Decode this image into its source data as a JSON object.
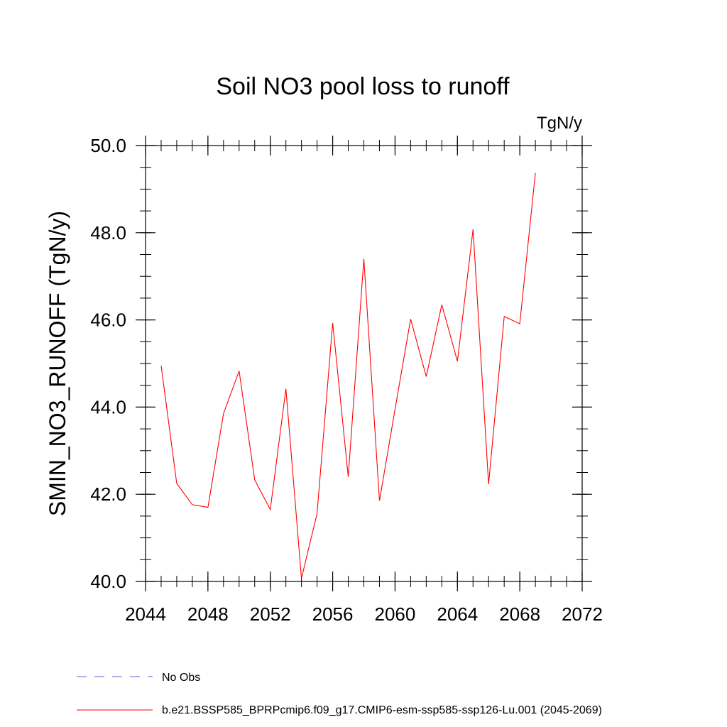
{
  "chart_data": {
    "type": "line",
    "title": "Soil NO3 pool loss to runoff",
    "units_label": "TgN/y",
    "xlabel": "",
    "ylabel": "SMIN_NO3_RUNOFF  (TgN/y)",
    "xlim": [
      2044,
      2072
    ],
    "ylim": [
      40.0,
      50.0
    ],
    "xticks": [
      2044,
      2048,
      2052,
      2056,
      2060,
      2064,
      2068,
      2072
    ],
    "xtick_labels": [
      "2044",
      "2048",
      "2052",
      "2056",
      "2060",
      "2064",
      "2068",
      "2072"
    ],
    "yticks": [
      40.0,
      42.0,
      44.0,
      46.0,
      48.0,
      50.0
    ],
    "ytick_labels": [
      "40.0",
      "42.0",
      "44.0",
      "46.0",
      "48.0",
      "50.0"
    ],
    "grid": false,
    "legend_placement": "bottom-left, below plot",
    "series": [
      {
        "name": "b.e21.BSSP585_BPRPcmip6.f09_g17.CMIP6-esm-ssp585-ssp126-Lu.001 (2045-2069)",
        "color": "#ff0000",
        "style": "solid",
        "x": [
          2045,
          2046,
          2047,
          2048,
          2049,
          2050,
          2051,
          2052,
          2053,
          2054,
          2055,
          2056,
          2057,
          2058,
          2059,
          2060,
          2061,
          2062,
          2063,
          2064,
          2065,
          2066,
          2067,
          2068,
          2069
        ],
        "y": [
          44.95,
          42.25,
          41.76,
          41.7,
          43.85,
          44.83,
          42.33,
          41.65,
          44.42,
          40.07,
          41.56,
          45.93,
          42.4,
          47.4,
          41.85,
          43.95,
          46.02,
          44.7,
          46.35,
          45.05,
          48.08,
          42.23,
          46.08,
          45.91,
          49.37
        ]
      }
    ],
    "legend": [
      {
        "label": "No Obs",
        "color": "#6a5acd",
        "style": "dashed"
      },
      {
        "label": "b.e21.BSSP585_BPRPcmip6.f09_g17.CMIP6-esm-ssp585-ssp126-Lu.001 (2045-2069)",
        "color": "#ff0000",
        "style": "solid"
      }
    ]
  }
}
